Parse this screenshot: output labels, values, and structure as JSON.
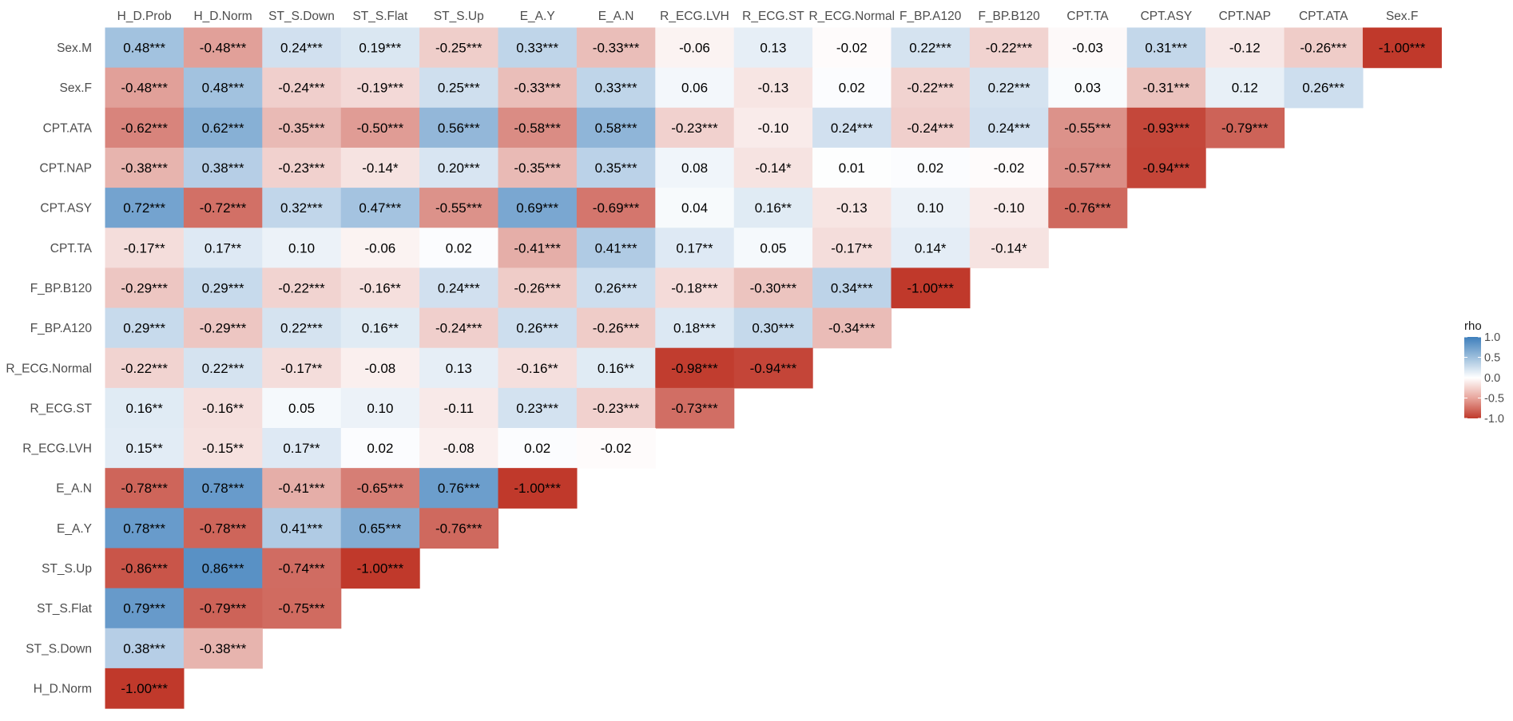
{
  "chart_data": {
    "type": "heatmap",
    "title": "",
    "xlabel": "",
    "ylabel": "",
    "columns": [
      "H_D.Prob",
      "H_D.Norm",
      "ST_S.Down",
      "ST_S.Flat",
      "ST_S.Up",
      "E_A.Y",
      "E_A.N",
      "R_ECG.LVH",
      "R_ECG.ST",
      "R_ECG.Normal",
      "F_BP.A120",
      "F_BP.B120",
      "CPT.TA",
      "CPT.ASY",
      "CPT.NAP",
      "CPT.ATA",
      "Sex.F"
    ],
    "rows": [
      "Sex.M",
      "Sex.F",
      "CPT.ATA",
      "CPT.NAP",
      "CPT.ASY",
      "CPT.TA",
      "F_BP.B120",
      "F_BP.A120",
      "R_ECG.Normal",
      "R_ECG.ST",
      "R_ECG.LVH",
      "E_A.N",
      "E_A.Y",
      "ST_S.Up",
      "ST_S.Flat",
      "ST_S.Down",
      "H_D.Norm"
    ],
    "values": [
      [
        0.48,
        -0.48,
        0.24,
        0.19,
        -0.25,
        0.33,
        -0.33,
        -0.06,
        0.13,
        -0.02,
        0.22,
        -0.22,
        -0.03,
        0.31,
        -0.12,
        -0.26,
        -1.0
      ],
      [
        -0.48,
        0.48,
        -0.24,
        -0.19,
        0.25,
        -0.33,
        0.33,
        0.06,
        -0.13,
        0.02,
        -0.22,
        0.22,
        0.03,
        -0.31,
        0.12,
        0.26
      ],
      [
        -0.62,
        0.62,
        -0.35,
        -0.5,
        0.56,
        -0.58,
        0.58,
        -0.23,
        -0.1,
        0.24,
        -0.24,
        0.24,
        -0.55,
        -0.93,
        -0.79
      ],
      [
        -0.38,
        0.38,
        -0.23,
        -0.14,
        0.2,
        -0.35,
        0.35,
        0.08,
        -0.14,
        0.01,
        0.02,
        -0.02,
        -0.57,
        -0.94
      ],
      [
        0.72,
        -0.72,
        0.32,
        0.47,
        -0.55,
        0.69,
        -0.69,
        0.04,
        0.16,
        -0.13,
        0.1,
        -0.1,
        -0.76
      ],
      [
        -0.17,
        0.17,
        0.1,
        -0.06,
        0.02,
        -0.41,
        0.41,
        0.17,
        0.05,
        -0.17,
        0.14,
        -0.14
      ],
      [
        -0.29,
        0.29,
        -0.22,
        -0.16,
        0.24,
        -0.26,
        0.26,
        -0.18,
        -0.3,
        0.34,
        -1.0
      ],
      [
        0.29,
        -0.29,
        0.22,
        0.16,
        -0.24,
        0.26,
        -0.26,
        0.18,
        0.3,
        -0.34
      ],
      [
        -0.22,
        0.22,
        -0.17,
        -0.08,
        0.13,
        -0.16,
        0.16,
        -0.98,
        -0.94
      ],
      [
        0.16,
        -0.16,
        0.05,
        0.1,
        -0.11,
        0.23,
        -0.23,
        -0.73
      ],
      [
        0.15,
        -0.15,
        0.17,
        0.02,
        -0.08,
        0.02,
        -0.02
      ],
      [
        -0.78,
        0.78,
        -0.41,
        -0.65,
        0.76,
        -1.0
      ],
      [
        0.78,
        -0.78,
        0.41,
        0.65,
        -0.76
      ],
      [
        -0.86,
        0.86,
        -0.74,
        -1.0
      ],
      [
        0.79,
        -0.79,
        -0.75
      ],
      [
        0.38,
        -0.38
      ],
      [
        -1.0
      ]
    ],
    "labels": [
      [
        "0.48***",
        "-0.48***",
        "0.24***",
        "0.19***",
        "-0.25***",
        "0.33***",
        "-0.33***",
        "-0.06",
        "0.13",
        "-0.02",
        "0.22***",
        "-0.22***",
        "-0.03",
        "0.31***",
        "-0.12",
        "-0.26***",
        "-1.00***"
      ],
      [
        "-0.48***",
        "0.48***",
        "-0.24***",
        "-0.19***",
        "0.25***",
        "-0.33***",
        "0.33***",
        "0.06",
        "-0.13",
        "0.02",
        "-0.22***",
        "0.22***",
        "0.03",
        "-0.31***",
        "0.12",
        "0.26***"
      ],
      [
        "-0.62***",
        "0.62***",
        "-0.35***",
        "-0.50***",
        "0.56***",
        "-0.58***",
        "0.58***",
        "-0.23***",
        "-0.10",
        "0.24***",
        "-0.24***",
        "0.24***",
        "-0.55***",
        "-0.93***",
        "-0.79***"
      ],
      [
        "-0.38***",
        "0.38***",
        "-0.23***",
        "-0.14*",
        "0.20***",
        "-0.35***",
        "0.35***",
        "0.08",
        "-0.14*",
        "0.01",
        "0.02",
        "-0.02",
        "-0.57***",
        "-0.94***"
      ],
      [
        "0.72***",
        "-0.72***",
        "0.32***",
        "0.47***",
        "-0.55***",
        "0.69***",
        "-0.69***",
        "0.04",
        "0.16**",
        "-0.13",
        "0.10",
        "-0.10",
        "-0.76***"
      ],
      [
        "-0.17**",
        "0.17**",
        "0.10",
        "-0.06",
        "0.02",
        "-0.41***",
        "0.41***",
        "0.17**",
        "0.05",
        "-0.17**",
        "0.14*",
        "-0.14*"
      ],
      [
        "-0.29***",
        "0.29***",
        "-0.22***",
        "-0.16**",
        "0.24***",
        "-0.26***",
        "0.26***",
        "-0.18***",
        "-0.30***",
        "0.34***",
        "-1.00***"
      ],
      [
        "0.29***",
        "-0.29***",
        "0.22***",
        "0.16**",
        "-0.24***",
        "0.26***",
        "-0.26***",
        "0.18***",
        "0.30***",
        "-0.34***"
      ],
      [
        "-0.22***",
        "0.22***",
        "-0.17**",
        "-0.08",
        "0.13",
        "-0.16**",
        "0.16**",
        "-0.98***",
        "-0.94***"
      ],
      [
        "0.16**",
        "-0.16**",
        "0.05",
        "0.10",
        "-0.11",
        "0.23***",
        "-0.23***",
        "-0.73***"
      ],
      [
        "0.15**",
        "-0.15**",
        "0.17**",
        "0.02",
        "-0.08",
        "0.02",
        "-0.02"
      ],
      [
        "-0.78***",
        "0.78***",
        "-0.41***",
        "-0.65***",
        "0.76***",
        "-1.00***"
      ],
      [
        "0.78***",
        "-0.78***",
        "0.41***",
        "0.65***",
        "-0.76***"
      ],
      [
        "-0.86***",
        "0.86***",
        "-0.74***",
        "-1.00***"
      ],
      [
        "0.79***",
        "-0.79***",
        "-0.75***"
      ],
      [
        "0.38***",
        "-0.38***"
      ],
      [
        "-1.00***"
      ]
    ],
    "legend": {
      "title": "rho",
      "position": "right",
      "ticks": [
        1.0,
        0.5,
        0.0,
        -0.5,
        -1.0
      ],
      "tick_labels": [
        "1.0",
        "0.5",
        "0.0",
        "-0.5",
        "-1.0"
      ],
      "range": [
        -1,
        1
      ]
    },
    "colors": {
      "low": "#c0392b",
      "mid": "#ffffff",
      "high": "#3e7fbc"
    },
    "grid": false
  }
}
